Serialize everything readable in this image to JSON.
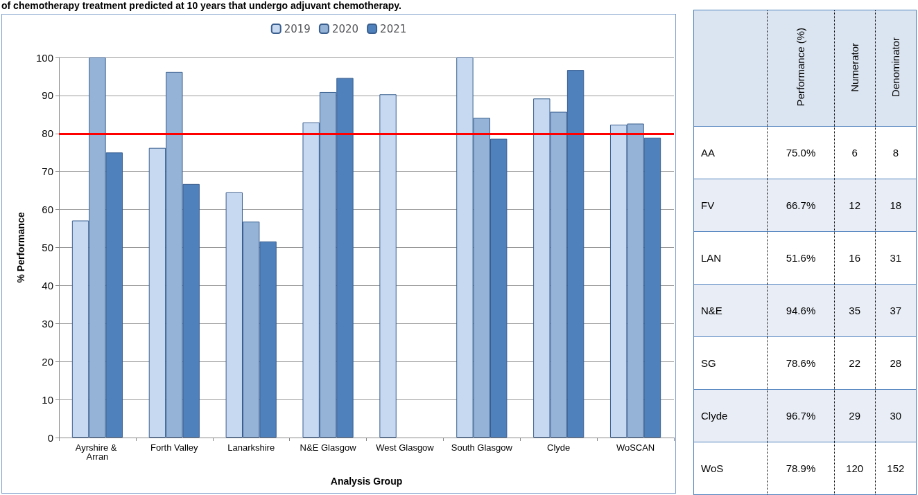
{
  "chart_data": [
    {
      "type": "bar",
      "title": "of chemotherapy treatment predicted at 10 years that undergo adjuvant chemotherapy.",
      "xlabel": "Analysis Group",
      "ylabel": "% Performance",
      "categories": [
        "Ayrshire & Arran",
        "Forth Valley",
        "Lanarkshire",
        "N&E Glasgow",
        "West Glasgow",
        "South Glasgow",
        "Clyde",
        "WoSCAN"
      ],
      "series": [
        {
          "name": "2019",
          "color": "#c6d9f1",
          "values": [
            57.1,
            76.2,
            64.5,
            82.9,
            90.3,
            100,
            89.2,
            82.3
          ]
        },
        {
          "name": "2020",
          "color": "#95b3d7",
          "values": [
            100,
            96.2,
            56.8,
            90.9,
            null,
            84.1,
            85.7,
            82.6
          ]
        },
        {
          "name": "2021",
          "color": "#4f81bd",
          "values": [
            75.0,
            66.7,
            51.6,
            94.6,
            null,
            78.6,
            96.7,
            78.9
          ]
        }
      ],
      "ylim": [
        0,
        100
      ],
      "yticks": [
        0,
        10,
        20,
        30,
        40,
        50,
        60,
        70,
        80,
        90,
        100
      ],
      "grid": "y",
      "legend": "top",
      "ref_lines": [
        {
          "axis": "y",
          "value": 80,
          "color": "#ff0000"
        }
      ]
    },
    {
      "type": "other",
      "categories": [
        null,
        "Performance (%)",
        "Numerator",
        "Denominator"
      ],
      "y_categories": [
        "AA",
        "FV",
        "LAN",
        "N&E",
        "SG",
        "Clyde",
        "WoS"
      ],
      "cell_labels": [
        [
          "75.0%",
          "6",
          "8"
        ],
        [
          "66.7%",
          "12",
          "18"
        ],
        [
          "51.6%",
          "16",
          "31"
        ],
        [
          "94.6%",
          "35",
          "37"
        ],
        [
          "78.6%",
          "22",
          "28"
        ],
        [
          "96.7%",
          "29",
          "30"
        ],
        [
          "78.9%",
          "120",
          "152"
        ]
      ]
    }
  ]
}
